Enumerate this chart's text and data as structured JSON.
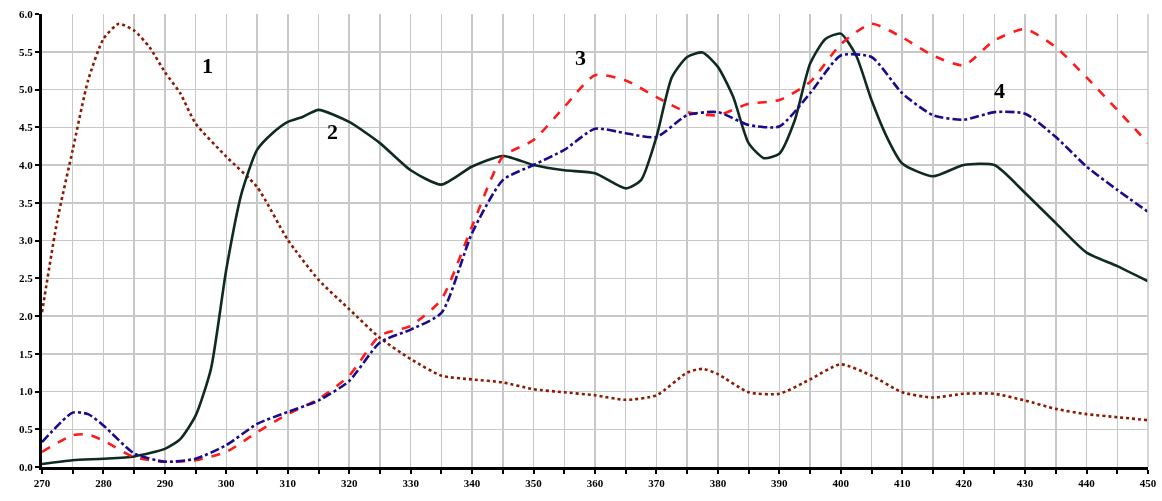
{
  "chart_data": {
    "type": "line",
    "xlim": [
      270,
      450
    ],
    "ylim": [
      0,
      6
    ],
    "x": [
      270,
      275,
      277.5,
      280,
      285,
      290,
      295,
      300,
      305,
      310,
      315,
      320,
      325,
      330,
      335,
      340,
      345,
      350,
      355,
      360,
      365,
      370,
      375,
      380,
      385,
      390,
      395,
      400,
      405,
      410,
      415,
      420,
      425,
      430,
      435,
      440,
      445,
      450
    ],
    "xticks": [
      270,
      {
        "value": 275,
        "label": null
      },
      280,
      {
        "value": 285,
        "label": null
      },
      290,
      {
        "value": 295,
        "label": null
      },
      300,
      {
        "value": 305,
        "label": null
      },
      310,
      {
        "value": 315,
        "label": null
      },
      320,
      {
        "value": 325,
        "label": null
      },
      330,
      {
        "value": 335,
        "label": null
      },
      340,
      {
        "value": 345,
        "label": null
      },
      350,
      {
        "value": 355,
        "label": null
      },
      360,
      {
        "value": 365,
        "label": null
      },
      370,
      {
        "value": 375,
        "label": null
      },
      380,
      {
        "value": 385,
        "label": null
      },
      390,
      {
        "value": 395,
        "label": null
      },
      400,
      {
        "value": 405,
        "label": null
      },
      410,
      {
        "value": 415,
        "label": null
      },
      420,
      {
        "value": 425,
        "label": null
      },
      430,
      {
        "value": 435,
        "label": null
      },
      440,
      {
        "value": 445,
        "label": null
      },
      450
    ],
    "yticks": [
      {
        "value": 0,
        "label": "0.0"
      },
      {
        "value": 0.5,
        "label": "0.5"
      },
      {
        "value": 1,
        "label": "1.0"
      },
      {
        "value": 1.5,
        "label": "1.5"
      },
      {
        "value": 2,
        "label": "2.0"
      },
      {
        "value": 2.5,
        "label": "2.5"
      },
      {
        "value": 3,
        "label": "3.0"
      },
      {
        "value": 3.5,
        "label": "3.5"
      },
      {
        "value": 4,
        "label": "4.0"
      },
      {
        "value": 4.5,
        "label": "4.5"
      },
      {
        "value": 5,
        "label": "5.0"
      },
      {
        "value": 5.5,
        "label": "5.5"
      },
      {
        "value": 6,
        "label": "6.0"
      }
    ],
    "grid": true,
    "legend": false,
    "series": [
      {
        "name": "1",
        "color": "#8b1a00",
        "line_style": "dotted",
        "x": [
          270,
          272.5,
          275,
          277.5,
          280,
          282.5,
          285,
          287.5,
          290,
          292.5,
          295,
          300,
          305,
          310,
          315,
          320,
          325,
          330,
          335,
          340,
          345,
          350,
          355,
          360,
          365,
          370,
          375,
          377.5,
          380,
          385,
          390,
          395,
          400,
          405,
          410,
          415,
          420,
          425,
          430,
          435,
          440,
          445,
          450
        ],
        "values": [
          2.05,
          3.27,
          4.2,
          5.12,
          5.67,
          5.87,
          5.78,
          5.56,
          5.23,
          4.95,
          4.55,
          4.11,
          3.71,
          3.01,
          2.48,
          2.09,
          1.71,
          1.43,
          1.21,
          1.16,
          1.12,
          1.03,
          0.99,
          0.95,
          0.89,
          0.95,
          1.25,
          1.3,
          1.23,
          0.99,
          0.97,
          1.16,
          1.36,
          1.21,
          0.99,
          0.92,
          0.97,
          0.97,
          0.88,
          0.77,
          0.7,
          0.66,
          0.62
        ]
      },
      {
        "name": "2",
        "color": "#0f2a20",
        "line_style": "solid",
        "x": [
          270,
          275,
          280,
          285,
          290,
          292.5,
          295,
          297.5,
          300,
          302.5,
          305,
          307.5,
          310,
          312.5,
          315,
          320,
          325,
          330,
          335,
          340,
          345,
          350,
          355,
          360,
          365,
          367.5,
          370,
          372.5,
          375,
          377.5,
          380,
          382.5,
          385,
          387.5,
          390,
          392.5,
          395,
          397.5,
          400,
          402.5,
          405,
          407.5,
          410,
          415,
          420,
          425,
          430,
          435,
          440,
          445,
          450
        ],
        "values": [
          0.04,
          0.09,
          0.11,
          0.14,
          0.24,
          0.37,
          0.68,
          1.3,
          2.62,
          3.63,
          4.2,
          4.42,
          4.57,
          4.64,
          4.73,
          4.57,
          4.29,
          3.93,
          3.74,
          3.98,
          4.12,
          4.0,
          3.93,
          3.89,
          3.69,
          3.8,
          4.37,
          5.16,
          5.43,
          5.49,
          5.3,
          4.9,
          4.29,
          4.09,
          4.15,
          4.59,
          5.34,
          5.67,
          5.74,
          5.45,
          4.86,
          4.37,
          4.02,
          3.85,
          4.0,
          4.0,
          3.63,
          3.23,
          2.84,
          2.66,
          2.46
        ]
      },
      {
        "name": "3",
        "color": "#ff1a1a",
        "line_style": "dashed",
        "values": [
          0.2,
          0.42,
          0.43,
          0.35,
          0.13,
          0.07,
          0.09,
          0.2,
          0.46,
          0.7,
          0.9,
          1.21,
          1.74,
          1.87,
          2.22,
          3.19,
          4.11,
          4.33,
          4.77,
          5.19,
          5.12,
          4.9,
          4.7,
          4.66,
          4.81,
          4.86,
          5.1,
          5.6,
          5.87,
          5.69,
          5.45,
          5.32,
          5.65,
          5.8,
          5.56,
          5.16,
          4.73,
          4.29
        ]
      },
      {
        "name": "4",
        "color": "#1a0a8c",
        "line_style": "dashdot",
        "values": [
          0.33,
          0.72,
          0.7,
          0.55,
          0.18,
          0.07,
          0.11,
          0.29,
          0.57,
          0.73,
          0.88,
          1.14,
          1.65,
          1.82,
          2.04,
          3.1,
          3.8,
          4.0,
          4.2,
          4.48,
          4.42,
          4.37,
          4.66,
          4.7,
          4.53,
          4.51,
          4.95,
          5.45,
          5.43,
          4.95,
          4.66,
          4.6,
          4.7,
          4.68,
          4.37,
          3.98,
          3.67,
          3.38
        ]
      }
    ],
    "marker": "none"
  }
}
